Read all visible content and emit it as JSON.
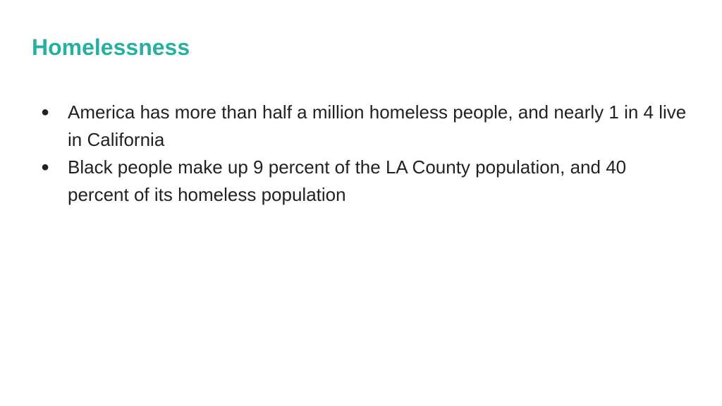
{
  "slide": {
    "title": "Homelessness",
    "title_color": "#26b0a1",
    "bullet_glyph": "●",
    "bullets": [
      {
        "text": "America has more than half a million homeless people, and nearly 1 in 4 live in California"
      },
      {
        "text": "Black people make up 9 percent of the LA County population, and 40 percent of its homeless population"
      }
    ]
  }
}
